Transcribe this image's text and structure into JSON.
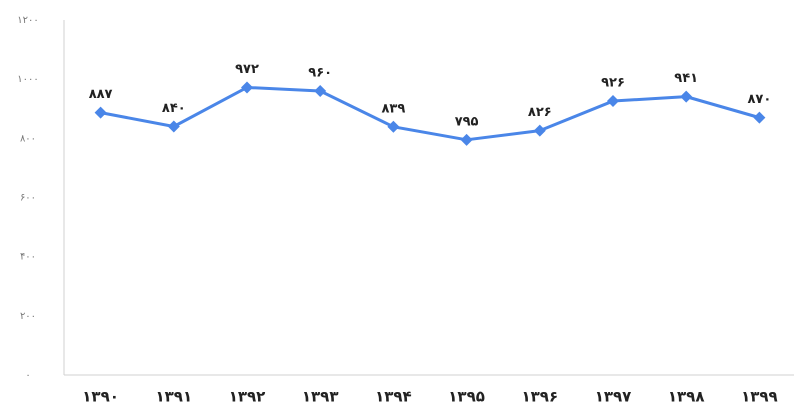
{
  "chart_data": {
    "type": "line",
    "categories": [
      "۱۳۹۰",
      "۱۳۹۱",
      "۱۳۹۲",
      "۱۳۹۳",
      "۱۳۹۴",
      "۱۳۹۵",
      "۱۳۹۶",
      "۱۳۹۷",
      "۱۳۹۸",
      "۱۳۹۹"
    ],
    "values": [
      887,
      840,
      972,
      960,
      839,
      795,
      826,
      926,
      941,
      870
    ],
    "value_labels": [
      "۸۸۷",
      "۸۴۰",
      "۹۷۲",
      "۹۶۰",
      "۸۳۹",
      "۷۹۵",
      "۸۲۶",
      "۹۲۶",
      "۹۴۱",
      "۸۷۰"
    ],
    "color": "#4a86e8",
    "ylim": [
      0,
      1200
    ],
    "yticks": [
      {
        "value": 0,
        "label": "۰"
      },
      {
        "value": 200,
        "label": "۲۰۰"
      },
      {
        "value": 400,
        "label": "۴۰۰"
      },
      {
        "value": 600,
        "label": "۶۰۰"
      },
      {
        "value": 800,
        "label": "۸۰۰"
      },
      {
        "value": 1000,
        "label": "۱۰۰۰"
      },
      {
        "value": 1200,
        "label": "۱۲۰۰"
      }
    ],
    "grid": false
  }
}
